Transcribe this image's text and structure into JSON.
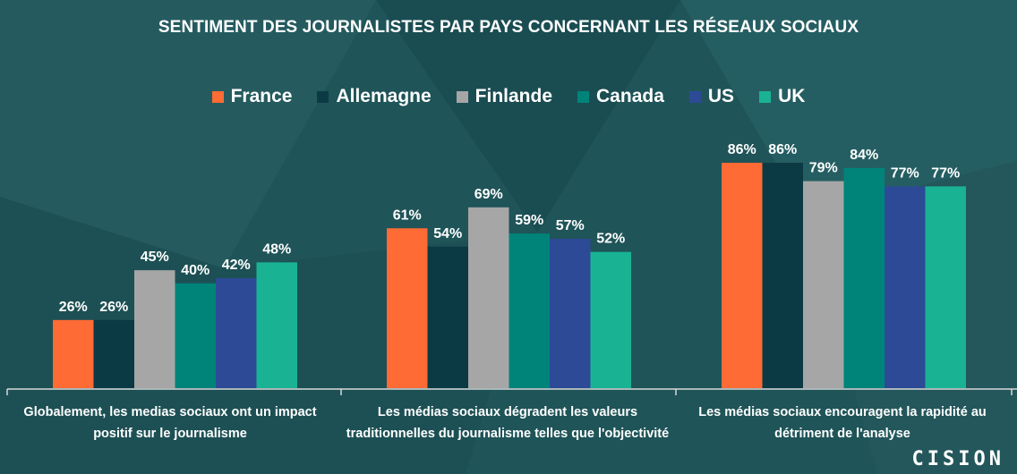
{
  "chart_data": {
    "type": "bar",
    "title": "SENTIMENT DES JOURNALISTES PAR PAYS CONCERNANT LES RÉSEAUX SOCIAUX",
    "categories": [
      "Globalement, les medias sociaux ont un impact positif sur le journalisme",
      "Les médias sociaux dégradent les valeurs traditionnelles du journalisme telles que l'objectivité",
      "Les médias sociaux encouragent la rapidité au détriment de l'analyse"
    ],
    "series": [
      {
        "name": "France",
        "values": [
          26,
          61,
          86
        ],
        "labels": [
          "26%",
          "61%",
          "86%"
        ],
        "color": "#ff6b35"
      },
      {
        "name": "Allemagne",
        "values": [
          26,
          54,
          86
        ],
        "labels": [
          "26%",
          "54%",
          "86%"
        ],
        "color": "#0b3a45"
      },
      {
        "name": "Finlande",
        "values": [
          45,
          69,
          79
        ],
        "labels": [
          "45%",
          "69%",
          "79%"
        ],
        "color": "#a6a6a6"
      },
      {
        "name": "Canada",
        "values": [
          40,
          59,
          84
        ],
        "labels": [
          "40%",
          "59%",
          "84%"
        ],
        "color": "#00847a"
      },
      {
        "name": "US",
        "values": [
          42,
          57,
          77
        ],
        "labels": [
          "42%",
          "57%",
          "77%"
        ],
        "color": "#2d4a96"
      },
      {
        "name": "UK",
        "values": [
          48,
          52,
          77
        ],
        "labels": [
          "48%",
          "52%",
          "77%"
        ],
        "color": "#19b394"
      }
    ],
    "ylim": [
      0,
      100
    ],
    "grid": false,
    "legend_position": "top"
  },
  "brand": {
    "logo_text": "CISION",
    "background": "#1f5458"
  }
}
